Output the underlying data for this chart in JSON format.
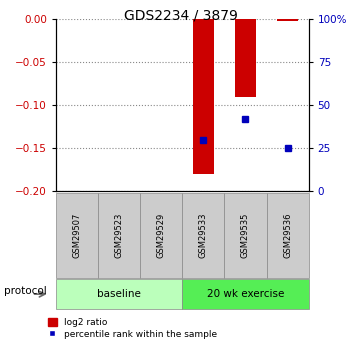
{
  "title": "GDS2234 / 3879",
  "samples": [
    "GSM29507",
    "GSM29523",
    "GSM29529",
    "GSM29533",
    "GSM29535",
    "GSM29536"
  ],
  "log2_ratio": [
    0.0,
    0.0,
    0.0,
    -0.18,
    -0.09,
    -0.002
  ],
  "percentile_rank": [
    null,
    null,
    null,
    30,
    42,
    25
  ],
  "ylim_left": [
    -0.2,
    0.0
  ],
  "ylim_right": [
    0,
    100
  ],
  "yticks_left": [
    0,
    -0.05,
    -0.1,
    -0.15,
    -0.2
  ],
  "yticks_right": [
    0,
    25,
    50,
    75,
    100
  ],
  "bar_color": "#cc0000",
  "percentile_color": "#0000bb",
  "groups": [
    {
      "label": "baseline",
      "start": 0,
      "end": 3,
      "color": "#bbffbb"
    },
    {
      "label": "20 wk exercise",
      "start": 3,
      "end": 6,
      "color": "#55ee55"
    }
  ],
  "protocol_label": "protocol",
  "legend_bar_label": "log2 ratio",
  "legend_dot_label": "percentile rank within the sample",
  "grid_color": "#888888",
  "sample_box_color": "#cccccc",
  "title_fontsize": 10,
  "tick_fontsize": 7.5,
  "label_fontsize": 7.5
}
